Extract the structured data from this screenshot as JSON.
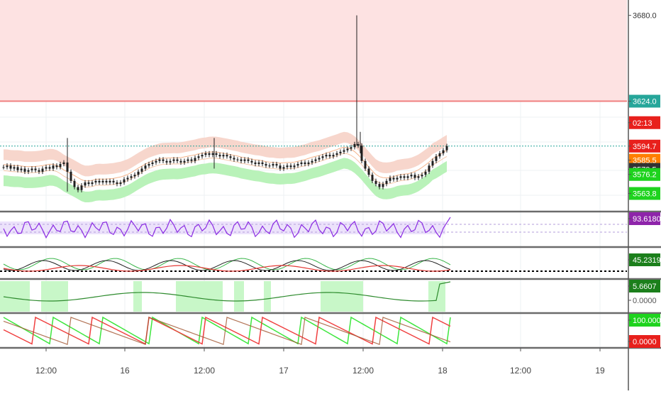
{
  "colors": {
    "grid": "#eef0f3",
    "separator": "#6b6b6b",
    "candle": "#1f1f1f",
    "topZone": "#fde2e2",
    "resistanceLine": "#f08080",
    "currentPriceLine": "#26a69a",
    "bandGreen": "#b9f2b9",
    "bandPink": "#f7d6cc",
    "bandMid": "#f5b38a",
    "rsi": "#8a2be2",
    "rsiFill": "#ece2fb",
    "stochGreen": "#39b54a",
    "stochRed": "#e53935",
    "stochBlack": "#222222",
    "trendFill": "#c8f7c8",
    "trendLine": "#2e8b2e",
    "sawGreen": "#3ee63e",
    "sawRed": "#f04040",
    "sawBrown": "#a0522d"
  },
  "price_axis": {
    "labels": [
      {
        "text": "3680.0",
        "value": 3680.0,
        "bg": "",
        "fg": "#333333"
      },
      {
        "text": "3624.0",
        "value": 3624.0,
        "bg": "#26a69a",
        "fg": "#ffffff"
      },
      {
        "text": "02:13",
        "value": 3610.0,
        "bg": "#e8201c",
        "fg": "#ffffff"
      },
      {
        "text": "3594.7",
        "value": 3594.7,
        "bg": "#e8201c",
        "fg": "#ffffff"
      },
      {
        "text": "3585.5",
        "value": 3585.5,
        "bg": "#ff7f00",
        "fg": "#ffffff"
      },
      {
        "text": "3579.5",
        "value": 3579.5,
        "bg": "#333333",
        "fg": "#ffffff"
      },
      {
        "text": "3576.2",
        "value": 3576.2,
        "bg": "#1ed31e",
        "fg": "#ffffff"
      },
      {
        "text": "3563.8",
        "value": 3563.8,
        "bg": "#1ed31e",
        "fg": "#ffffff"
      }
    ]
  },
  "panes": {
    "rsi_label": {
      "text": "93.6180",
      "bg": "#8e24aa",
      "fg": "#ffffff"
    },
    "stoch_label": {
      "text": "45.2319",
      "bg": "#1b7f1b",
      "fg": "#ffffff"
    },
    "trend_labels": [
      {
        "text": "5.6607",
        "bg": "#1b7f1b",
        "fg": "#ffffff"
      },
      {
        "text": "0.0000",
        "bg": "",
        "fg": "#555555"
      }
    ],
    "saw_labels": [
      {
        "text": "100.0000",
        "bg": "#1ed31e",
        "fg": "#ffffff"
      },
      {
        "text": "0.0000",
        "bg": "#e8201c",
        "fg": "#ffffff"
      }
    ]
  },
  "time_axis": {
    "labels": [
      "12:00",
      "16",
      "12:00",
      "17",
      "12:00",
      "18",
      "12:00",
      "19"
    ]
  },
  "chart_data": {
    "type": "line",
    "title": "",
    "series": [
      {
        "kind": "candles",
        "x": [
          0,
          5,
          10,
          15,
          20,
          25,
          30,
          35,
          40,
          45,
          50,
          55,
          60,
          65,
          70,
          75,
          80,
          85,
          90,
          95,
          100,
          105,
          110,
          115,
          120,
          125,
          130,
          135,
          140,
          145,
          150,
          155,
          160,
          165,
          170,
          175,
          180,
          185,
          190,
          195,
          200,
          205,
          210,
          215,
          220,
          225,
          230,
          235,
          240,
          245,
          250,
          255,
          260,
          265,
          270,
          275,
          280,
          285,
          290,
          295,
          300,
          305,
          310,
          315,
          320,
          325,
          330,
          335,
          340,
          345,
          350,
          355,
          360,
          365,
          370,
          375,
          380,
          385,
          390,
          395,
          400,
          405,
          410,
          415,
          420,
          425,
          430,
          435,
          440,
          445,
          450,
          455,
          460,
          465,
          470,
          475,
          480,
          485,
          490,
          495,
          500,
          505,
          510,
          515,
          520,
          525,
          530,
          535,
          540,
          545,
          550,
          555,
          560,
          565,
          570,
          575,
          580,
          585,
          590,
          595,
          600,
          605,
          610,
          615,
          620,
          625
        ],
        "close": [
          3581,
          3582,
          3580,
          3581,
          3579,
          3580,
          3578,
          3579,
          3580,
          3579,
          3578,
          3580,
          3581,
          3580,
          3582,
          3581,
          3583,
          3584,
          3578,
          3572,
          3568,
          3566,
          3569,
          3571,
          3570,
          3571,
          3572,
          3571,
          3572,
          3571,
          3572,
          3571,
          3570,
          3571,
          3573,
          3574,
          3575,
          3576,
          3578,
          3580,
          3582,
          3583,
          3584,
          3585,
          3586,
          3585,
          3584,
          3585,
          3586,
          3585,
          3584,
          3585,
          3586,
          3585,
          3587,
          3588,
          3589,
          3590,
          3589,
          3590,
          3589,
          3588,
          3589,
          3588,
          3587,
          3586,
          3586,
          3585,
          3586,
          3585,
          3584,
          3583,
          3584,
          3583,
          3582,
          3582,
          3583,
          3582,
          3580,
          3581,
          3582,
          3581,
          3582,
          3583,
          3584,
          3583,
          3584,
          3585,
          3586,
          3587,
          3588,
          3589,
          3588,
          3589,
          3590,
          3591,
          3592,
          3593,
          3594,
          3596,
          3595,
          3585,
          3580,
          3576,
          3572,
          3570,
          3568,
          3570,
          3572,
          3574,
          3573,
          3574,
          3575,
          3574,
          3575,
          3576,
          3574,
          3575,
          3576,
          3578,
          3582,
          3585,
          3588,
          3590,
          3592,
          3594.7
        ]
      },
      {
        "kind": "rsi",
        "last": 93.618
      },
      {
        "kind": "stochastic",
        "last": 45.2319
      },
      {
        "kind": "trend",
        "last": 5.6607
      },
      {
        "kind": "sawtooth",
        "range": [
          0,
          100
        ]
      }
    ],
    "levels": {
      "resistance": 3624.0,
      "current": 3594.7
    },
    "ylim": [
      3552,
      3690
    ],
    "grid": true,
    "legend": "none"
  }
}
